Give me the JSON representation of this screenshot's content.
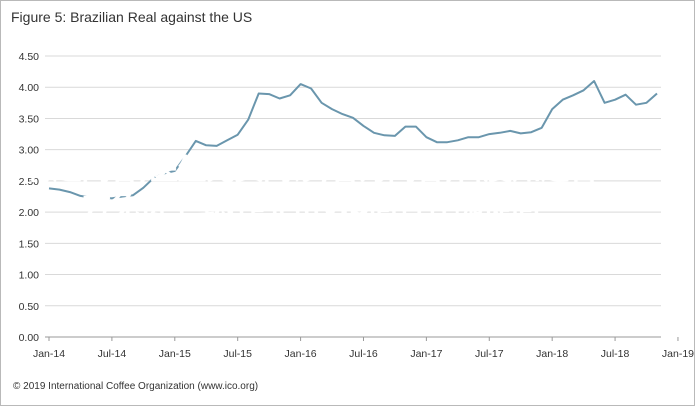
{
  "figure": {
    "title": "Figure 5: Brazilian Real against the US",
    "copyright": "© 2019 International Coffee Organization (www.ico.org)"
  },
  "overlay_text": "有趣问答,医生免费问诊,智力问答,百度知道官方免费下载,作业帮vip问答在哪提问",
  "colors": {
    "line": "#6a96ad",
    "grid": "#d9d9d9",
    "axis": "#999999",
    "overlay_text": "#ffffff"
  },
  "chart_data": {
    "type": "line",
    "title": "Figure 5: Brazilian Real against the US",
    "xlabel": "",
    "ylabel": "",
    "ylim": [
      0,
      4.5
    ],
    "yticks": [
      "0.00",
      "0.50",
      "1.00",
      "1.50",
      "2.00",
      "2.50",
      "3.00",
      "3.50",
      "4.00",
      "4.50"
    ],
    "xticks": [
      "Jan-14",
      "Jul-14",
      "Jan-15",
      "Jul-15",
      "Jan-16",
      "Jul-16",
      "Jan-17",
      "Jul-17",
      "Jan-18",
      "Jul-18",
      "Jan-19"
    ],
    "grid": "horizontal",
    "series": [
      {
        "values": [
          2.38,
          2.36,
          2.32,
          2.26,
          2.23,
          2.24,
          2.22,
          2.25,
          2.27,
          2.39,
          2.55,
          2.62,
          2.66,
          2.89,
          3.14,
          3.07,
          3.06,
          3.15,
          3.24,
          3.48,
          3.9,
          3.89,
          3.82,
          3.87,
          4.05,
          3.98,
          3.75,
          3.65,
          3.57,
          3.51,
          3.38,
          3.27,
          3.23,
          3.22,
          3.37,
          3.37,
          3.2,
          3.12,
          3.12,
          3.15,
          3.2,
          3.2,
          3.25,
          3.27,
          3.3,
          3.26,
          3.28,
          3.35,
          3.65,
          3.8,
          3.87,
          3.95,
          4.1,
          3.75,
          3.8,
          3.88,
          3.72,
          3.75,
          3.9
        ]
      }
    ]
  }
}
